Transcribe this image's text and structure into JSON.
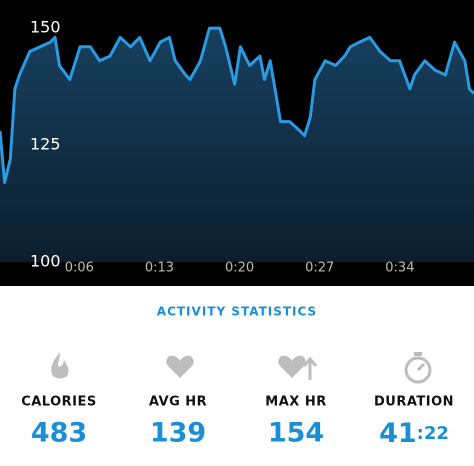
{
  "chart_data": {
    "type": "line",
    "x": [
      0,
      0.4,
      0.9,
      1.3,
      1.7,
      2.6,
      3.5,
      4.4,
      4.8,
      5.2,
      6.1,
      7.0,
      7.9,
      8.7,
      9.6,
      10.5,
      11.4,
      12.2,
      13.1,
      14.0,
      14.8,
      15.3,
      16.2,
      16.6,
      17.5,
      18.3,
      19.2,
      19.7,
      20.5,
      21.0,
      21.8,
      22.7,
      23.1,
      23.6,
      24.5,
      25.3,
      26.2,
      26.6,
      27.1,
      27.5,
      28.4,
      29.3,
      30.1,
      30.6,
      31.4,
      32.3,
      33.2,
      34.1,
      34.9,
      35.8,
      36.2,
      37.1,
      38.0,
      38.9,
      39.7,
      40.6,
      41.0,
      41.4
    ],
    "series": [
      {
        "color": "#2a9be3",
        "values": [
          128,
          117,
          122,
          137,
          140,
          145,
          146,
          147,
          148,
          142,
          139,
          146,
          146,
          143,
          144,
          148,
          146,
          148,
          143,
          147,
          148,
          143,
          140,
          139,
          143,
          150,
          150,
          146,
          138,
          146,
          142,
          144,
          139,
          143,
          130,
          130,
          128,
          127,
          131,
          139,
          143,
          142,
          144,
          146,
          147,
          148,
          145,
          143,
          143,
          137,
          140,
          143,
          141,
          140,
          147,
          143,
          137,
          136
        ]
      }
    ],
    "xlim": [
      0,
      41.4
    ],
    "xticks": [
      {
        "value": 6,
        "label": "0:06"
      },
      {
        "value": 13,
        "label": "0:13"
      },
      {
        "value": 20,
        "label": "0:20"
      },
      {
        "value": 27,
        "label": "0:27"
      },
      {
        "value": 34,
        "label": "0:34"
      }
    ],
    "ylim": [
      100,
      156
    ],
    "yticks": [
      100,
      125,
      150
    ]
  },
  "stats": {
    "title": "ACTIVITY STATISTICS",
    "items": [
      {
        "label": "CALORIES",
        "value": "483"
      },
      {
        "label": "AVG HR",
        "value": "139"
      },
      {
        "label": "MAX HR",
        "value": "154"
      }
    ],
    "duration": {
      "label": "DURATION",
      "minutes": "41",
      "seconds": ":22"
    }
  }
}
